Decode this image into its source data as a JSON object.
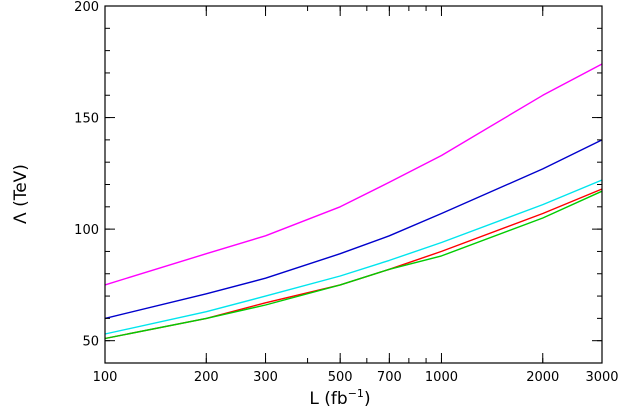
{
  "chart_data": {
    "type": "line",
    "title": "",
    "xlabel": "L (fb",
    "xlabel_sup": "−1",
    "xlabel_close": ")",
    "ylabel": "Λ (TeV)",
    "xscale": "log",
    "xlim": [
      100,
      3000
    ],
    "ylim": [
      40,
      200
    ],
    "xticks": [
      100,
      200,
      300,
      500,
      700,
      1000,
      2000,
      3000
    ],
    "xtick_labels": [
      "100",
      "200",
      "300",
      "500",
      "700",
      "1000",
      "2000",
      "3000"
    ],
    "yticks": [
      50,
      100,
      150,
      200
    ],
    "ytick_labels": [
      "50",
      "100",
      "150",
      "200"
    ],
    "grid": false,
    "legend": "none",
    "series": [
      {
        "color": "#ff00ff",
        "x": [
          100,
          200,
          300,
          500,
          700,
          1000,
          2000,
          3000
        ],
        "y": [
          75,
          89,
          97,
          110,
          121,
          133,
          160,
          174
        ]
      },
      {
        "color": "#0000cc",
        "x": [
          100,
          200,
          300,
          500,
          700,
          1000,
          2000,
          3000
        ],
        "y": [
          60,
          71,
          78,
          89,
          97,
          107,
          127,
          140
        ]
      },
      {
        "color": "#00e5ee",
        "x": [
          100,
          200,
          300,
          500,
          700,
          1000,
          2000,
          3000
        ],
        "y": [
          53,
          63,
          70,
          79,
          86,
          94,
          111,
          122
        ]
      },
      {
        "color": "#ff0000",
        "x": [
          100,
          200,
          300,
          500,
          700,
          1000,
          2000,
          3000
        ],
        "y": [
          51,
          60,
          67,
          75,
          82,
          90,
          107,
          118
        ]
      },
      {
        "color": "#00cc00",
        "x": [
          100,
          200,
          300,
          500,
          700,
          1000,
          2000,
          3000
        ],
        "y": [
          51,
          60,
          66,
          75,
          82,
          88,
          105,
          117
        ]
      }
    ]
  }
}
